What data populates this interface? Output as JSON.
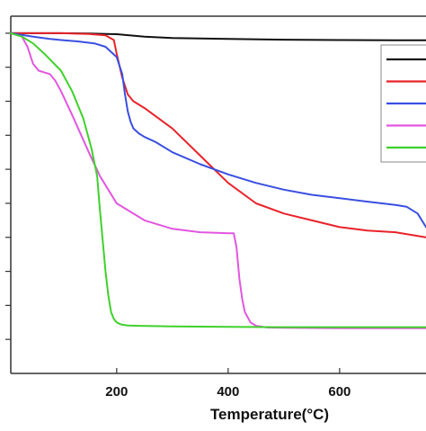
{
  "chart_data": {
    "type": "line",
    "title": "",
    "xlabel": "Temperature(°C)",
    "ylabel": "",
    "xlim": [
      10,
      755
    ],
    "ylim": [
      0,
      105
    ],
    "xticks": [
      200,
      400,
      600
    ],
    "xtick_labels": [
      "200",
      "400",
      "600"
    ],
    "yticks": [
      10,
      20,
      30,
      40,
      50,
      60,
      70,
      80,
      90,
      100
    ],
    "grid": false,
    "legend": {
      "placement": "top-right",
      "entries": [
        "",
        "",
        "",
        "",
        ""
      ]
    },
    "series": [
      {
        "color": "#111111",
        "x": [
          10,
          50,
          100,
          150,
          200,
          250,
          300,
          400,
          500,
          600,
          700,
          755
        ],
        "y": [
          100,
          100,
          100,
          99.9,
          99.7,
          99,
          98.6,
          98.3,
          98.1,
          98,
          97.9,
          97.9
        ]
      },
      {
        "color": "#e8232a",
        "x": [
          10,
          100,
          150,
          180,
          195,
          200,
          210,
          220,
          230,
          250,
          300,
          350,
          400,
          450,
          500,
          550,
          600,
          650,
          700,
          755
        ],
        "y": [
          100,
          100,
          99.8,
          99.4,
          98,
          94,
          87,
          82,
          80,
          78,
          72,
          64,
          56,
          50,
          47,
          45,
          43,
          42,
          41.5,
          40
        ]
      },
      {
        "color": "#3a4fe0",
        "x": [
          10,
          50,
          80,
          100,
          130,
          160,
          180,
          200,
          210,
          215,
          220,
          225,
          230,
          240,
          250,
          270,
          300,
          350,
          400,
          450,
          500,
          550,
          600,
          650,
          700,
          720,
          740,
          755
        ],
        "y": [
          100,
          99,
          98.3,
          98,
          97.6,
          97,
          96,
          93,
          88,
          82,
          77,
          74,
          72,
          70.5,
          69.5,
          68,
          65,
          61.5,
          58.5,
          56,
          54,
          52.5,
          51.5,
          50.5,
          49.5,
          49,
          47,
          43
        ]
      },
      {
        "color": "#e256e0",
        "x": [
          10,
          30,
          40,
          50,
          60,
          70,
          80,
          90,
          100,
          120,
          150,
          170,
          200,
          250,
          300,
          350,
          380,
          400,
          410,
          415,
          420,
          425,
          430,
          440,
          450,
          470,
          500,
          600,
          700,
          755
        ],
        "y": [
          100,
          99,
          96,
          91,
          89,
          88.5,
          88,
          86,
          83,
          76,
          65,
          58,
          50,
          45,
          42.5,
          41.5,
          41.3,
          41.2,
          41.2,
          37,
          28,
          22,
          18,
          15,
          14,
          13.5,
          13.4,
          13.3,
          13.3,
          13.3
        ]
      },
      {
        "color": "#3fd12b",
        "x": [
          10,
          30,
          50,
          70,
          100,
          120,
          140,
          155,
          165,
          170,
          175,
          180,
          185,
          190,
          195,
          200,
          205,
          210,
          220,
          240,
          300,
          400,
          500,
          600,
          700,
          755
        ],
        "y": [
          100,
          99,
          97,
          94,
          89,
          83,
          75,
          66,
          58,
          48,
          39,
          30,
          23,
          18,
          16,
          15,
          14.6,
          14.3,
          14.1,
          14,
          13.8,
          13.7,
          13.6,
          13.6,
          13.6,
          13.6
        ]
      }
    ]
  }
}
